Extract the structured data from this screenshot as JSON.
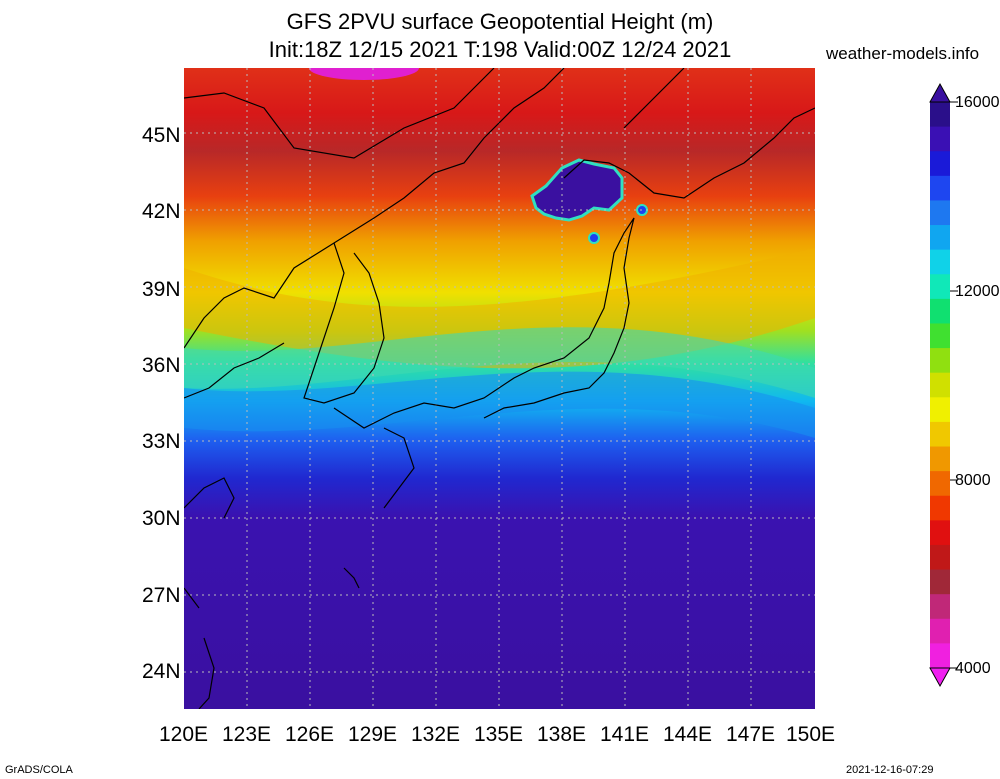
{
  "header": {
    "title_line1": "GFS 2PVU surface Geopotential Height (m)",
    "title_line2": "Init:18Z 12/15 2021 T:198 Valid:00Z 12/24 2021",
    "site": "weather-models.info"
  },
  "map": {
    "lat_labels": [
      "45N",
      "42N",
      "39N",
      "36N",
      "33N",
      "30N",
      "27N",
      "24N"
    ],
    "lon_labels": [
      "120E",
      "123E",
      "126E",
      "129E",
      "132E",
      "135E",
      "138E",
      "141E",
      "144E",
      "147E",
      "150E"
    ],
    "extent": {
      "lon_min": 120,
      "lon_max": 150,
      "lat_min": 22.5,
      "lat_max": 47.5
    }
  },
  "colorbar": {
    "labels": [
      "16000",
      "12000",
      "8000",
      "4000"
    ],
    "colors": [
      "#2a0f8a",
      "#3a10b4",
      "#1a1ad8",
      "#1e46f0",
      "#1e78f0",
      "#10a6f0",
      "#10d2e8",
      "#10e8b8",
      "#10e070",
      "#40e030",
      "#90e010",
      "#d0e000",
      "#f0f000",
      "#f0c800",
      "#f09800",
      "#f06800",
      "#f03800",
      "#e01010",
      "#c01818",
      "#a02838",
      "#c02878",
      "#e020b0",
      "#f020e0"
    ],
    "top_color": "#3a10a0",
    "bottom_color": "#f020f0"
  },
  "footer": {
    "left": "GrADS/COLA",
    "right": "2021-12-16-07:29"
  }
}
